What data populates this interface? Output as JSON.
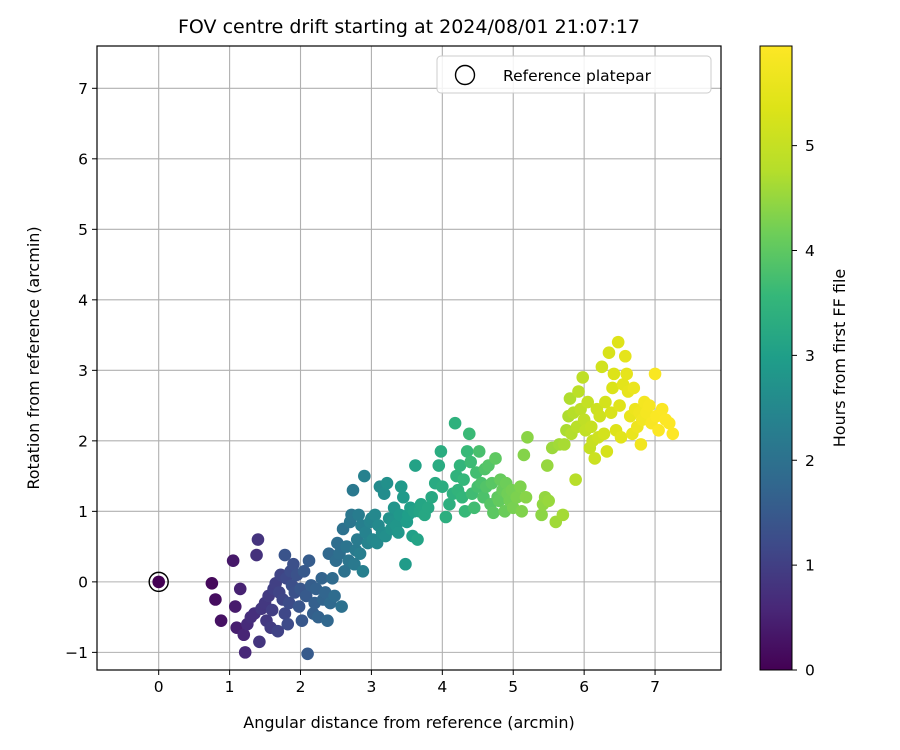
{
  "chart_data": {
    "type": "scatter",
    "title": "FOV centre drift starting at 2024/08/01 21:07:17",
    "xlabel": "Angular distance from reference (arcmin)",
    "ylabel": "Rotation from reference (arcmin)",
    "xlim": [
      -0.87,
      7.93
    ],
    "ylim": [
      -1.25,
      7.6
    ],
    "xticks": [
      0,
      1,
      2,
      3,
      4,
      5,
      6,
      7
    ],
    "yticks": [
      -1,
      0,
      1,
      2,
      3,
      4,
      5,
      6,
      7
    ],
    "grid": true,
    "legend": {
      "placement": "top-right",
      "entries": [
        "Reference platepar"
      ]
    },
    "reference_point": {
      "x": 0,
      "y": 0,
      "label": "Reference platepar"
    },
    "colorbar": {
      "label": "Hours from first FF file",
      "colormap": "viridis",
      "range": [
        0,
        5.95
      ],
      "ticks": [
        0,
        1,
        2,
        3,
        4,
        5
      ]
    },
    "series": [
      {
        "points": [
          [
            0.0,
            0.0,
            0.0
          ],
          [
            0.75,
            -0.02,
            0.12
          ],
          [
            0.8,
            -0.25,
            0.18
          ],
          [
            0.88,
            -0.55,
            0.25
          ],
          [
            1.05,
            0.3,
            0.35
          ],
          [
            1.08,
            -0.35,
            0.4
          ],
          [
            1.1,
            -0.65,
            0.45
          ],
          [
            1.15,
            -0.1,
            0.5
          ],
          [
            1.2,
            -0.75,
            0.55
          ],
          [
            1.22,
            -1.0,
            0.6
          ],
          [
            1.25,
            -0.6,
            0.65
          ],
          [
            1.3,
            -0.5,
            0.7
          ],
          [
            1.35,
            -0.45,
            0.72
          ],
          [
            1.38,
            0.38,
            0.75
          ],
          [
            1.4,
            0.6,
            0.8
          ],
          [
            1.42,
            -0.85,
            0.82
          ],
          [
            1.45,
            -0.38,
            0.85
          ],
          [
            1.5,
            -0.3,
            0.88
          ],
          [
            1.52,
            -0.55,
            0.9
          ],
          [
            1.55,
            -0.2,
            0.92
          ],
          [
            1.58,
            -0.65,
            0.95
          ],
          [
            1.6,
            -0.4,
            0.98
          ],
          [
            1.62,
            -0.1,
            1.0
          ],
          [
            1.65,
            -0.02,
            1.02
          ],
          [
            1.68,
            -0.7,
            1.05
          ],
          [
            1.7,
            -0.15,
            1.08
          ],
          [
            1.72,
            0.1,
            1.1
          ],
          [
            1.75,
            -0.25,
            1.12
          ],
          [
            1.78,
            -0.45,
            1.15
          ],
          [
            1.8,
            0.05,
            1.18
          ],
          [
            1.82,
            -0.6,
            1.2
          ],
          [
            1.84,
            -0.3,
            1.22
          ],
          [
            1.86,
            0.15,
            1.25
          ],
          [
            1.88,
            -0.05,
            1.28
          ],
          [
            1.9,
            0.25,
            1.3
          ],
          [
            1.92,
            -0.15,
            1.32
          ],
          [
            1.95,
            0.1,
            1.35
          ],
          [
            1.78,
            0.38,
            1.38
          ],
          [
            1.98,
            -0.35,
            1.4
          ],
          [
            2.0,
            -0.1,
            1.42
          ],
          [
            2.02,
            -0.55,
            1.45
          ],
          [
            2.05,
            0.15,
            1.48
          ],
          [
            2.08,
            -0.2,
            1.5
          ],
          [
            2.1,
            -1.02,
            1.52
          ],
          [
            2.12,
            0.3,
            1.55
          ],
          [
            2.15,
            -0.05,
            1.58
          ],
          [
            2.18,
            -0.45,
            1.6
          ],
          [
            2.2,
            -0.3,
            1.62
          ],
          [
            2.22,
            -0.1,
            1.65
          ],
          [
            2.25,
            -0.5,
            1.68
          ],
          [
            2.3,
            0.05,
            1.7
          ],
          [
            2.32,
            -0.25,
            1.72
          ],
          [
            2.35,
            -0.15,
            1.75
          ],
          [
            2.38,
            -0.55,
            1.78
          ],
          [
            2.4,
            0.4,
            1.8
          ],
          [
            2.42,
            -0.3,
            1.82
          ],
          [
            2.45,
            0.05,
            1.85
          ],
          [
            2.48,
            -0.2,
            1.88
          ],
          [
            2.5,
            0.3,
            1.9
          ],
          [
            2.52,
            0.55,
            1.92
          ],
          [
            2.55,
            0.4,
            1.95
          ],
          [
            2.58,
            -0.35,
            1.98
          ],
          [
            2.6,
            0.75,
            2.0
          ],
          [
            2.62,
            0.15,
            2.02
          ],
          [
            2.65,
            0.5,
            2.05
          ],
          [
            2.68,
            0.3,
            2.08
          ],
          [
            2.7,
            0.85,
            2.1
          ],
          [
            2.72,
            0.95,
            2.12
          ],
          [
            2.74,
            1.3,
            2.15
          ],
          [
            2.76,
            0.25,
            2.18
          ],
          [
            2.78,
            0.45,
            2.2
          ],
          [
            2.8,
            0.6,
            2.22
          ],
          [
            2.82,
            0.95,
            2.25
          ],
          [
            2.84,
            0.4,
            2.28
          ],
          [
            2.86,
            0.8,
            2.3
          ],
          [
            2.88,
            0.15,
            2.32
          ],
          [
            2.9,
            1.5,
            2.35
          ],
          [
            2.92,
            0.7,
            2.38
          ],
          [
            2.95,
            0.55,
            2.4
          ],
          [
            2.98,
            0.85,
            2.42
          ],
          [
            3.0,
            0.9,
            2.45
          ],
          [
            3.02,
            0.6,
            2.48
          ],
          [
            3.05,
            0.95,
            2.5
          ],
          [
            3.08,
            0.55,
            2.52
          ],
          [
            3.1,
            0.8,
            2.55
          ],
          [
            3.12,
            1.35,
            2.58
          ],
          [
            3.15,
            0.7,
            2.6
          ],
          [
            3.18,
            1.25,
            2.62
          ],
          [
            3.2,
            0.65,
            2.65
          ],
          [
            3.22,
            1.4,
            2.68
          ],
          [
            3.25,
            0.9,
            2.7
          ],
          [
            3.28,
            0.75,
            2.72
          ],
          [
            3.3,
            0.85,
            2.75
          ],
          [
            3.32,
            1.05,
            2.78
          ],
          [
            3.35,
            0.8,
            2.8
          ],
          [
            3.38,
            0.7,
            2.82
          ],
          [
            3.4,
            0.95,
            2.85
          ],
          [
            3.42,
            1.35,
            2.88
          ],
          [
            3.45,
            1.2,
            2.9
          ],
          [
            3.48,
            0.25,
            2.92
          ],
          [
            3.5,
            0.85,
            2.95
          ],
          [
            3.52,
            0.95,
            2.98
          ],
          [
            3.55,
            1.05,
            3.0
          ],
          [
            3.58,
            0.65,
            3.02
          ],
          [
            3.6,
            1.0,
            3.05
          ],
          [
            3.62,
            1.65,
            3.08
          ],
          [
            3.65,
            0.6,
            3.1
          ],
          [
            3.68,
            1.0,
            3.12
          ],
          [
            3.7,
            1.1,
            3.15
          ],
          [
            3.75,
            0.95,
            3.18
          ],
          [
            3.8,
            1.05,
            3.2
          ],
          [
            3.85,
            1.2,
            3.22
          ],
          [
            3.9,
            1.4,
            3.25
          ],
          [
            3.95,
            1.65,
            3.28
          ],
          [
            3.98,
            1.85,
            3.3
          ],
          [
            4.0,
            1.35,
            3.32
          ],
          [
            4.05,
            0.92,
            3.35
          ],
          [
            4.1,
            1.1,
            3.38
          ],
          [
            4.15,
            1.25,
            3.4
          ],
          [
            4.18,
            2.25,
            3.42
          ],
          [
            4.2,
            1.5,
            3.45
          ],
          [
            4.22,
            1.3,
            3.48
          ],
          [
            4.25,
            1.65,
            3.5
          ],
          [
            4.28,
            1.2,
            3.52
          ],
          [
            4.3,
            1.45,
            3.55
          ],
          [
            4.32,
            1.0,
            3.58
          ],
          [
            4.35,
            1.85,
            3.6
          ],
          [
            4.38,
            2.1,
            3.62
          ],
          [
            4.4,
            1.7,
            3.65
          ],
          [
            4.42,
            1.25,
            3.68
          ],
          [
            4.45,
            1.05,
            3.7
          ],
          [
            4.48,
            1.55,
            3.72
          ],
          [
            4.5,
            1.35,
            3.75
          ],
          [
            4.52,
            1.85,
            3.78
          ],
          [
            4.55,
            1.4,
            3.8
          ],
          [
            4.58,
            1.2,
            3.82
          ],
          [
            4.6,
            1.6,
            3.85
          ],
          [
            4.62,
            1.35,
            3.88
          ],
          [
            4.65,
            1.65,
            3.9
          ],
          [
            4.68,
            1.1,
            3.92
          ],
          [
            4.7,
            1.4,
            3.95
          ],
          [
            4.72,
            0.98,
            3.98
          ],
          [
            4.75,
            1.75,
            4.0
          ],
          [
            4.78,
            1.2,
            4.02
          ],
          [
            4.8,
            1.15,
            4.05
          ],
          [
            4.82,
            1.45,
            4.08
          ],
          [
            4.85,
            1.3,
            4.1
          ],
          [
            4.88,
            1.0,
            4.12
          ],
          [
            4.9,
            1.4,
            4.15
          ],
          [
            4.92,
            1.25,
            4.18
          ],
          [
            4.95,
            1.15,
            4.2
          ],
          [
            4.98,
            1.3,
            4.22
          ],
          [
            5.0,
            1.05,
            4.25
          ],
          [
            5.05,
            1.2,
            4.28
          ],
          [
            5.1,
            1.35,
            4.3
          ],
          [
            5.12,
            1.0,
            4.32
          ],
          [
            5.15,
            1.8,
            4.35
          ],
          [
            5.18,
            1.2,
            4.38
          ],
          [
            5.2,
            2.05,
            4.4
          ],
          [
            5.4,
            0.95,
            4.42
          ],
          [
            5.42,
            1.1,
            4.45
          ],
          [
            5.45,
            1.2,
            4.48
          ],
          [
            5.48,
            1.65,
            4.5
          ],
          [
            5.5,
            1.15,
            4.52
          ],
          [
            5.55,
            1.9,
            4.55
          ],
          [
            5.6,
            0.85,
            4.58
          ],
          [
            5.65,
            1.95,
            4.6
          ],
          [
            5.7,
            0.95,
            4.62
          ],
          [
            5.72,
            1.95,
            4.65
          ],
          [
            5.75,
            2.15,
            4.68
          ],
          [
            5.78,
            2.35,
            4.7
          ],
          [
            5.8,
            2.6,
            4.72
          ],
          [
            5.82,
            2.1,
            4.75
          ],
          [
            5.85,
            2.4,
            4.78
          ],
          [
            5.88,
            1.45,
            4.8
          ],
          [
            5.9,
            2.2,
            4.82
          ],
          [
            5.92,
            2.7,
            4.85
          ],
          [
            5.95,
            2.45,
            4.88
          ],
          [
            5.98,
            2.9,
            4.9
          ],
          [
            6.0,
            2.3,
            4.92
          ],
          [
            6.02,
            2.15,
            4.95
          ],
          [
            6.05,
            2.55,
            4.98
          ],
          [
            6.08,
            1.9,
            5.0
          ],
          [
            6.1,
            2.2,
            5.02
          ],
          [
            6.12,
            2.0,
            5.05
          ],
          [
            6.15,
            1.75,
            5.08
          ],
          [
            6.18,
            2.45,
            5.1
          ],
          [
            6.2,
            2.05,
            5.12
          ],
          [
            6.22,
            2.35,
            5.15
          ],
          [
            6.25,
            3.05,
            5.18
          ],
          [
            6.28,
            2.1,
            5.2
          ],
          [
            6.3,
            2.55,
            5.22
          ],
          [
            6.32,
            1.85,
            5.25
          ],
          [
            6.35,
            3.25,
            5.28
          ],
          [
            6.38,
            2.4,
            5.3
          ],
          [
            6.4,
            2.75,
            5.32
          ],
          [
            6.42,
            2.95,
            5.35
          ],
          [
            6.45,
            2.15,
            5.38
          ],
          [
            6.48,
            3.4,
            5.4
          ],
          [
            6.5,
            2.5,
            5.42
          ],
          [
            6.52,
            2.05,
            5.45
          ],
          [
            6.55,
            2.8,
            5.48
          ],
          [
            6.58,
            3.2,
            5.5
          ],
          [
            6.6,
            2.95,
            5.52
          ],
          [
            6.62,
            2.7,
            5.55
          ],
          [
            6.65,
            2.35,
            5.58
          ],
          [
            6.68,
            2.1,
            5.6
          ],
          [
            6.7,
            2.75,
            5.62
          ],
          [
            6.72,
            2.45,
            5.65
          ],
          [
            6.75,
            2.2,
            5.68
          ],
          [
            6.78,
            2.4,
            5.7
          ],
          [
            6.8,
            1.95,
            5.72
          ],
          [
            6.82,
            2.3,
            5.75
          ],
          [
            6.85,
            2.55,
            5.78
          ],
          [
            6.88,
            2.4,
            5.8
          ],
          [
            6.92,
            2.5,
            5.82
          ],
          [
            6.95,
            2.25,
            5.85
          ],
          [
            7.0,
            2.95,
            5.88
          ],
          [
            7.02,
            2.35,
            5.9
          ],
          [
            7.05,
            2.15,
            5.91
          ],
          [
            7.1,
            2.45,
            5.92
          ],
          [
            7.15,
            2.3,
            5.93
          ],
          [
            7.2,
            2.25,
            5.94
          ],
          [
            7.25,
            2.1,
            5.95
          ]
        ]
      }
    ]
  }
}
